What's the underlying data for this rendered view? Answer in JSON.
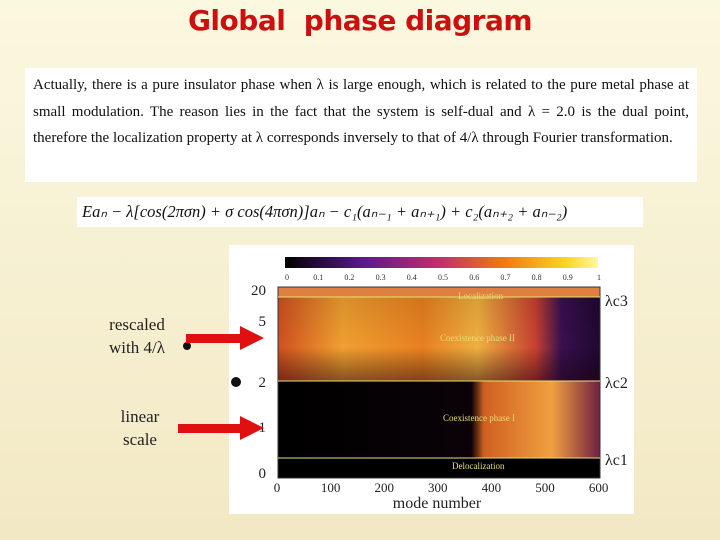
{
  "header": {
    "title": "Global  phase diagram"
  },
  "paragraph": {
    "text": "Actually, there is a pure insulator phase when λ is large enough, which is related to the pure metal phase at small modulation. The reason lies in the fact that the system is self-dual and λ = 2.0 is the dual point, therefore the localization property at λ corresponds inversely to that of 4/λ through Fourier transformation."
  },
  "equation": {
    "text": "Eaₙ − λ[cos(2πσn) + σ cos(4πσn)]aₙ − c₁(aₙ₋₁ + aₙ₊₁) + c₂(aₙ₊₂ + aₙ₋₂)"
  },
  "annotations": {
    "rescaled": [
      "rescaled",
      "with 4/λ"
    ],
    "linear": [
      "linear",
      "scale"
    ]
  },
  "figure": {
    "colorbar_ticks": [
      "0",
      "0.1",
      "0.2",
      "0.3",
      "0.4",
      "0.5",
      "0.6",
      "0.7",
      "0.8",
      "0.9",
      "1"
    ],
    "y_ticks": [
      "20",
      "5",
      "2",
      "1",
      "0"
    ],
    "x_ticks": [
      "0",
      "100",
      "200",
      "300",
      "400",
      "500",
      "600"
    ],
    "x_label": "mode number",
    "regions": [
      "Localization",
      "Coexistence phase II",
      "Coexistence phase I",
      "Delocalization"
    ],
    "critical_labels": [
      "λc3",
      "λc2",
      "λc1"
    ]
  }
}
